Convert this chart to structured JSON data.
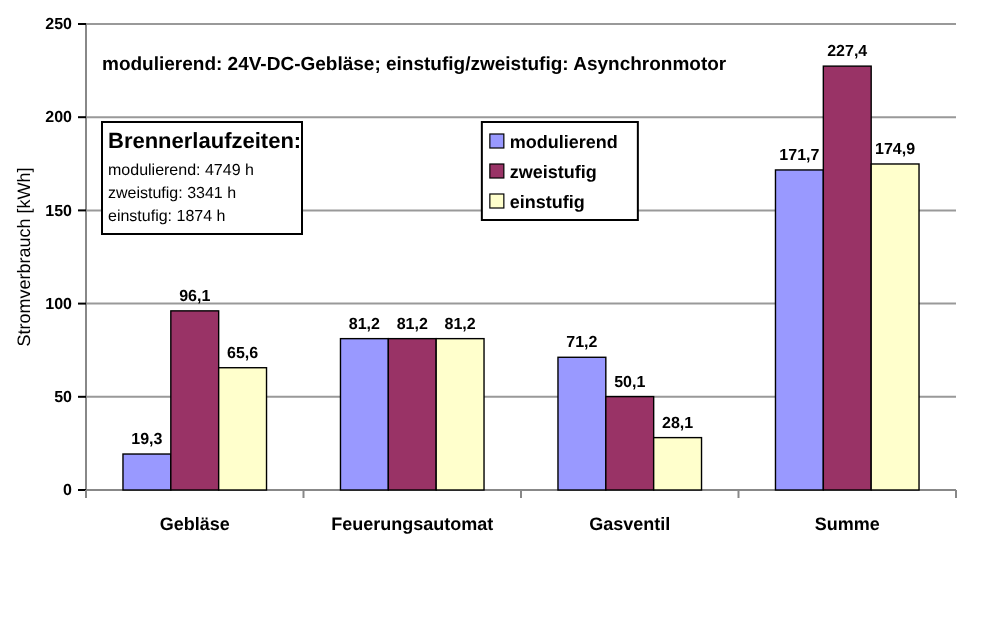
{
  "chart_data": {
    "type": "bar",
    "ylabel": "Stromverbrauch [kWh]",
    "categories": [
      "Gebläse",
      "Feuerungsautomat",
      "Gasventil",
      "Summe"
    ],
    "series": [
      {
        "name": "modulierend",
        "color": "#9999ff",
        "values": [
          19.3,
          81.2,
          71.2,
          171.7
        ],
        "value_labels": [
          "19,3",
          "81,2",
          "71,2",
          "171,7"
        ]
      },
      {
        "name": "zweistufig",
        "color": "#993366",
        "values": [
          96.1,
          81.2,
          50.1,
          227.4
        ],
        "value_labels": [
          "96,1",
          "81,2",
          "50,1",
          "227,4"
        ]
      },
      {
        "name": "einstufig",
        "color": "#ffffcc",
        "values": [
          65.6,
          81.2,
          28.1,
          174.9
        ],
        "value_labels": [
          "65,6",
          "81,2",
          "28,1",
          "174,9"
        ]
      }
    ],
    "ylim": [
      0,
      250
    ],
    "yticks": [
      0,
      50,
      100,
      150,
      200,
      250
    ],
    "grid": "y",
    "legend": "top",
    "annotations": [
      "modulierend: 24V-DC-Gebläse; einstufig/zweistufig: Asynchronmotor",
      "Brennerlaufzeiten:",
      "modulierend: 4749 h",
      "zweistufig: 3341 h",
      "einstufig: 1874 h"
    ]
  }
}
